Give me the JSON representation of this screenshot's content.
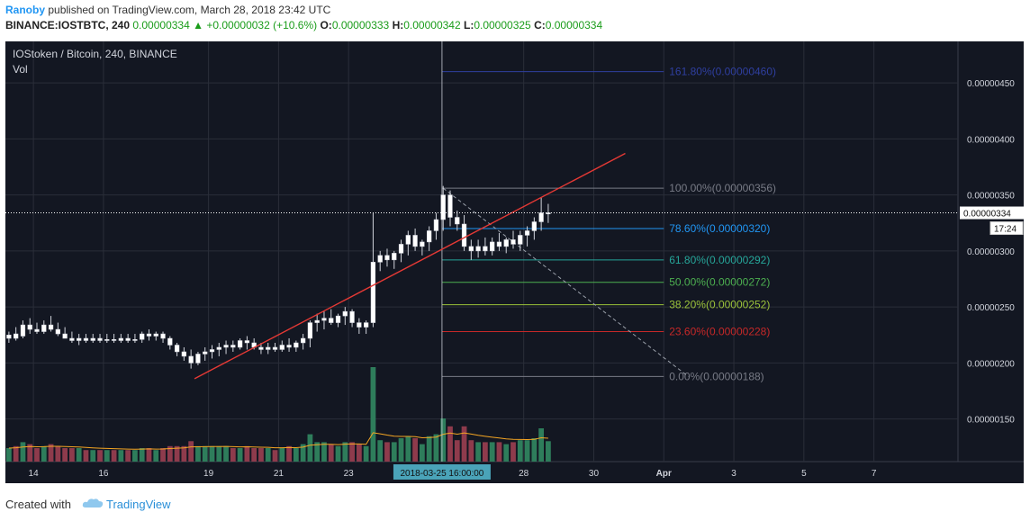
{
  "header": {
    "author": "Ranoby",
    "published": "published on TradingView.com, March 28, 2018 23:42 UTC",
    "symbol": "BINANCE:IOSTBTC, 240",
    "last": "0.00000334",
    "change": "+0.00000032 (+10.6%)",
    "o_label": "O:",
    "o": "0.00000333",
    "h_label": "H:",
    "h": "0.00000342",
    "l_label": "L:",
    "l": "0.00000325",
    "c_label": "C:",
    "c": "0.00000334"
  },
  "footer": {
    "created_with": "Created with",
    "brand": "TradingView"
  },
  "colors": {
    "background": "#131722",
    "grid": "#2a2e39",
    "bull_candle": "#ffffff",
    "bear_candle": "#ffffff",
    "trendline": "#e53935",
    "vol_up": "#2e7d5b",
    "vol_down": "#8e3b4c",
    "vol_ma": "#f5a623",
    "price_line": "#ffffff"
  },
  "chart_data": {
    "type": "candlestick",
    "title": "IOStoken / Bitcoin, 240, BINANCE",
    "subtitle": "Vol",
    "y_ticks": [
      "0.00000150",
      "0.00000200",
      "0.00000250",
      "0.00000300",
      "0.00000350",
      "0.00000400",
      "0.00000450"
    ],
    "y_tick_values": [
      150,
      200,
      250,
      300,
      350,
      400,
      450
    ],
    "ylim": [
      112,
      487
    ],
    "y_unit_scale": "1e-8 BTC",
    "x_tick_labels": [
      "14",
      "16",
      "19",
      "21",
      "23",
      "2018-03-25 16:00:00",
      "28",
      "30",
      "Apr",
      "3",
      "5",
      "7"
    ],
    "x_tick_days": [
      14,
      16,
      19,
      21,
      23,
      25.667,
      28,
      30,
      32,
      34,
      36,
      38
    ],
    "xlim_days": [
      13.2,
      40.4
    ],
    "last_price_label": "0.00000334",
    "countdown": "17:24",
    "candles_day_high_low_open_close": [
      [
        13.3,
        228,
        218,
        222,
        225
      ],
      [
        13.5,
        232,
        220,
        226,
        222
      ],
      [
        13.7,
        238,
        222,
        224,
        234
      ],
      [
        13.9,
        240,
        226,
        234,
        230
      ],
      [
        14.1,
        236,
        226,
        230,
        228
      ],
      [
        14.3,
        238,
        226,
        228,
        234
      ],
      [
        14.5,
        242,
        228,
        234,
        230
      ],
      [
        14.7,
        236,
        224,
        230,
        226
      ],
      [
        14.9,
        232,
        222,
        226,
        222
      ],
      [
        15.1,
        228,
        218,
        222,
        220
      ],
      [
        15.3,
        226,
        216,
        220,
        222
      ],
      [
        15.5,
        226,
        218,
        222,
        220
      ],
      [
        15.7,
        226,
        218,
        220,
        222
      ],
      [
        15.9,
        226,
        218,
        222,
        220
      ],
      [
        16.1,
        226,
        218,
        220,
        221
      ],
      [
        16.3,
        226,
        218,
        221,
        220
      ],
      [
        16.5,
        226,
        218,
        220,
        222
      ],
      [
        16.7,
        226,
        218,
        222,
        220
      ],
      [
        16.9,
        226,
        218,
        220,
        221
      ],
      [
        17.1,
        228,
        218,
        221,
        226
      ],
      [
        17.3,
        230,
        220,
        226,
        224
      ],
      [
        17.5,
        228,
        220,
        224,
        226
      ],
      [
        17.7,
        228,
        218,
        226,
        222
      ],
      [
        17.9,
        224,
        212,
        222,
        216
      ],
      [
        18.1,
        218,
        206,
        216,
        210
      ],
      [
        18.3,
        214,
        202,
        210,
        206
      ],
      [
        18.5,
        212,
        195,
        206,
        200
      ],
      [
        18.7,
        210,
        198,
        200,
        208
      ],
      [
        18.9,
        214,
        202,
        208,
        210
      ],
      [
        19.1,
        216,
        204,
        210,
        212
      ],
      [
        19.3,
        218,
        206,
        212,
        214
      ],
      [
        19.5,
        220,
        208,
        214,
        216
      ],
      [
        19.7,
        220,
        210,
        216,
        214
      ],
      [
        19.9,
        222,
        212,
        214,
        220
      ],
      [
        20.1,
        224,
        212,
        220,
        218
      ],
      [
        20.3,
        222,
        212,
        218,
        214
      ],
      [
        20.5,
        218,
        208,
        214,
        212
      ],
      [
        20.7,
        218,
        208,
        212,
        214
      ],
      [
        20.9,
        218,
        210,
        214,
        212
      ],
      [
        21.1,
        220,
        210,
        212,
        216
      ],
      [
        21.3,
        222,
        210,
        216,
        214
      ],
      [
        21.5,
        220,
        210,
        214,
        218
      ],
      [
        21.7,
        226,
        212,
        218,
        222
      ],
      [
        21.9,
        238,
        214,
        222,
        236
      ],
      [
        22.1,
        244,
        228,
        236,
        238
      ],
      [
        22.3,
        246,
        230,
        238,
        240
      ],
      [
        22.5,
        248,
        234,
        240,
        236
      ],
      [
        22.7,
        244,
        232,
        236,
        242
      ],
      [
        22.9,
        250,
        234,
        242,
        246
      ],
      [
        23.1,
        248,
        232,
        246,
        236
      ],
      [
        23.3,
        240,
        226,
        236,
        232
      ],
      [
        23.5,
        238,
        226,
        232,
        236
      ],
      [
        23.7,
        334,
        232,
        236,
        290
      ],
      [
        23.9,
        300,
        282,
        290,
        296
      ],
      [
        24.1,
        302,
        286,
        296,
        292
      ],
      [
        24.3,
        300,
        284,
        292,
        298
      ],
      [
        24.5,
        310,
        290,
        298,
        306
      ],
      [
        24.7,
        318,
        296,
        306,
        314
      ],
      [
        24.9,
        320,
        300,
        314,
        304
      ],
      [
        25.1,
        310,
        296,
        304,
        308
      ],
      [
        25.3,
        322,
        300,
        308,
        318
      ],
      [
        25.5,
        334,
        310,
        318,
        328
      ],
      [
        25.7,
        358,
        318,
        328,
        350
      ],
      [
        25.9,
        354,
        322,
        350,
        330
      ],
      [
        26.1,
        336,
        318,
        330,
        324
      ],
      [
        26.3,
        332,
        300,
        324,
        304
      ],
      [
        26.5,
        310,
        292,
        304,
        300
      ],
      [
        26.7,
        310,
        294,
        300,
        304
      ],
      [
        26.9,
        312,
        296,
        304,
        300
      ],
      [
        27.1,
        312,
        296,
        300,
        308
      ],
      [
        27.3,
        316,
        300,
        308,
        304
      ],
      [
        27.5,
        312,
        298,
        304,
        310
      ],
      [
        27.7,
        318,
        302,
        310,
        306
      ],
      [
        27.9,
        318,
        300,
        306,
        314
      ],
      [
        28.1,
        322,
        304,
        314,
        318
      ],
      [
        28.3,
        330,
        310,
        318,
        326
      ],
      [
        28.5,
        348,
        318,
        326,
        334
      ],
      [
        28.7,
        342,
        325,
        333,
        334
      ]
    ],
    "volume_ma_note": "volume histogram with moving average",
    "fib_retracement": [
      {
        "label": "161.80%(0.00000460)",
        "level": "161.80%",
        "value": 460,
        "color": "#2f3fa0"
      },
      {
        "label": "100.00%(0.00000356)",
        "level": "100.00%",
        "value": 356,
        "color": "#787b86"
      },
      {
        "label": "78.60%(0.00000320)",
        "level": "78.60%",
        "value": 320,
        "color": "#2196f3"
      },
      {
        "label": "61.80%(0.00000292)",
        "level": "61.80%",
        "value": 292,
        "color": "#26a69a"
      },
      {
        "label": "50.00%(0.00000272)",
        "level": "50.00%",
        "value": 272,
        "color": "#4caf50"
      },
      {
        "label": "38.20%(0.00000252)",
        "level": "38.20%",
        "value": 252,
        "color": "#9bc23a"
      },
      {
        "label": "23.60%(0.00000228)",
        "level": "23.60%",
        "value": 228,
        "color": "#c62828"
      },
      {
        "label": "0.00%(0.00000188)",
        "level": "0.00%",
        "value": 188,
        "color": "#787b86"
      }
    ],
    "trendline": {
      "from": [
        18.6,
        186
      ],
      "to": [
        30.9,
        387
      ]
    },
    "diagonal_dashed": {
      "from": [
        25.7,
        356
      ],
      "to": [
        32.7,
        188
      ]
    },
    "crosshair_day": 25.667,
    "last_price": 334
  }
}
